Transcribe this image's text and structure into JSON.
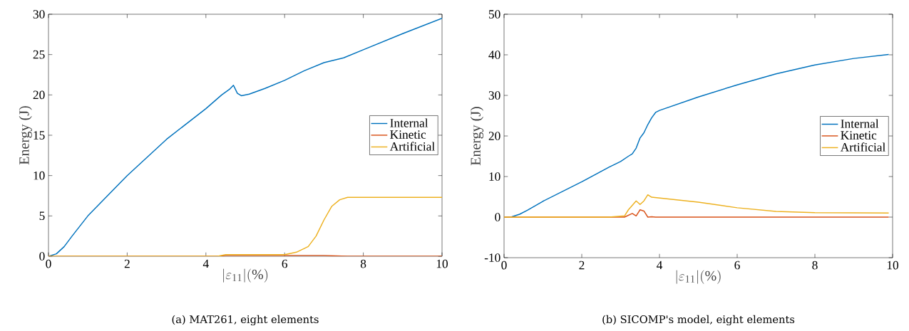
{
  "chart_data": [
    {
      "type": "line",
      "xlabel": "|\\varepsilon_{11}|(\\%)",
      "ylabel": "Energy (J)",
      "annotations": [
        "(a)  MAT261, eight elements"
      ],
      "xlim": [
        0,
        10
      ],
      "ylim": [
        0,
        30
      ],
      "xticks": [
        0,
        2,
        4,
        6,
        8,
        10
      ],
      "yticks": [
        0,
        5,
        10,
        15,
        20,
        25,
        30
      ],
      "legend": "right",
      "grid": false,
      "series": [
        {
          "name": "Internal",
          "color": "#0072bd",
          "x": [
            0,
            0.2,
            0.4,
            0.6,
            1,
            2,
            3,
            4,
            4.4,
            4.6,
            4.7,
            4.8,
            4.9,
            5.1,
            5.5,
            6,
            6.5,
            7,
            7.5,
            8,
            9,
            10
          ],
          "values": [
            0,
            0.3,
            1.2,
            2.5,
            5,
            10,
            14.5,
            18.3,
            20,
            20.7,
            21.2,
            20.2,
            19.9,
            20.1,
            20.8,
            21.8,
            23,
            24,
            24.6,
            25.6,
            27.6,
            29.5
          ]
        },
        {
          "name": "Kinetic",
          "color": "#d95319",
          "x": [
            0,
            4.3,
            4.5,
            6,
            7,
            7.6,
            10
          ],
          "values": [
            0,
            0,
            0.1,
            0.1,
            0.1,
            0,
            0
          ]
        },
        {
          "name": "Artificial",
          "color": "#edb120",
          "x": [
            0,
            4.3,
            4.5,
            6,
            6.3,
            6.6,
            6.8,
            7,
            7.2,
            7.4,
            7.6,
            8,
            10
          ],
          "values": [
            0,
            0,
            0.2,
            0.2,
            0.5,
            1.2,
            2.5,
            4.5,
            6.2,
            7,
            7.3,
            7.3,
            7.3
          ]
        }
      ]
    },
    {
      "type": "line",
      "xlabel": "|\\varepsilon_{11}|(\\%)",
      "ylabel": "Energy (J)",
      "annotations": [
        "(b)  SICOMP's model, eight elements"
      ],
      "xlim": [
        0,
        10
      ],
      "ylim": [
        -10,
        50
      ],
      "xticks": [
        0,
        2,
        4,
        6,
        8,
        10
      ],
      "yticks": [
        -10,
        0,
        10,
        20,
        30,
        40,
        50
      ],
      "legend": "right",
      "grid": false,
      "series": [
        {
          "name": "Internal",
          "color": "#0072bd",
          "x": [
            0,
            0.2,
            0.4,
            0.6,
            1,
            2,
            2.7,
            3,
            3.2,
            3.3,
            3.4,
            3.5,
            3.6,
            3.7,
            3.8,
            3.9,
            4,
            5,
            6,
            7,
            8,
            9,
            9.9
          ],
          "values": [
            0,
            0.1,
            0.7,
            1.7,
            3.9,
            8.7,
            12.3,
            13.7,
            15,
            15.6,
            17,
            19.5,
            20.8,
            22.8,
            24.5,
            25.8,
            26.3,
            29.6,
            32.6,
            35.3,
            37.5,
            39.1,
            40.1
          ]
        },
        {
          "name": "Kinetic",
          "color": "#d95319",
          "x": [
            0,
            2.7,
            3.1,
            3.3,
            3.4,
            3.5,
            3.6,
            3.7,
            3.8,
            3.9,
            9.9
          ],
          "values": [
            0,
            0,
            0,
            0.9,
            0.3,
            1.8,
            1.5,
            0,
            0.1,
            0,
            0
          ]
        },
        {
          "name": "Artificial",
          "color": "#edb120",
          "x": [
            0,
            2.7,
            3.1,
            3.2,
            3.4,
            3.5,
            3.6,
            3.7,
            3.8,
            5,
            6,
            7,
            8,
            9.9
          ],
          "values": [
            0,
            0,
            0.3,
            1.8,
            4,
            3.1,
            4,
            5.5,
            4.9,
            3.7,
            2.3,
            1.4,
            1.1,
            1
          ]
        }
      ]
    }
  ]
}
